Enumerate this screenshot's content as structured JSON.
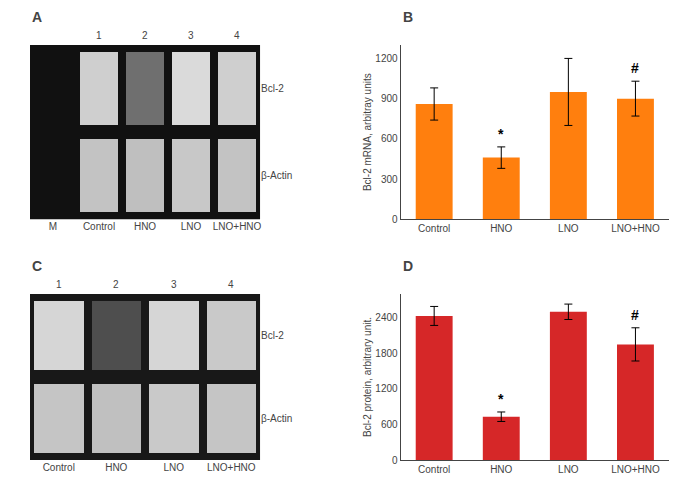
{
  "chart_data": [
    {
      "type": "heatmap",
      "title": "A",
      "categories": [
        "M",
        "Control",
        "HNO",
        "LNO",
        "LNO+HNO"
      ],
      "annotations": [
        null,
        "1",
        "2",
        "3",
        "4"
      ],
      "rows": [
        "Bcl-2",
        "β-Actin"
      ],
      "values": [
        [
          null,
          0.85,
          0.42,
          0.9,
          0.85
        ],
        [
          null,
          0.8,
          0.78,
          0.82,
          0.8
        ]
      ],
      "zlim": [
        0,
        1
      ],
      "color": "#111111"
    },
    {
      "type": "bar",
      "title": "B",
      "categories": [
        "Control",
        "HNO",
        "LNO",
        "LNO+HNO"
      ],
      "values": [
        860,
        460,
        950,
        900
      ],
      "errors": [
        120,
        80,
        250,
        130
      ],
      "annotations": [
        null,
        "*",
        null,
        "#"
      ],
      "ylabel": "Bcl-2 mRNA, arbitray units",
      "ylim": [
        0,
        1300
      ],
      "yticks": [
        0,
        300,
        600,
        900,
        1200
      ],
      "grid": false
    },
    {
      "type": "heatmap",
      "title": "C",
      "categories": [
        "Control",
        "HNO",
        "LNO",
        "LNO+HNO"
      ],
      "annotations": [
        "1",
        "2",
        "3",
        "4"
      ],
      "rows": [
        "Bcl-2",
        "β-Actin"
      ],
      "values": [
        [
          0.88,
          0.25,
          0.88,
          0.82
        ],
        [
          0.8,
          0.78,
          0.82,
          0.8
        ]
      ],
      "zlim": [
        0,
        1
      ],
      "color": "#181818"
    },
    {
      "type": "bar",
      "title": "D",
      "categories": [
        "Control",
        "HNO",
        "LNO",
        "LNO+HNO"
      ],
      "values": [
        2430,
        730,
        2500,
        1950
      ],
      "errors": [
        160,
        80,
        130,
        280
      ],
      "annotations": [
        null,
        "*",
        null,
        "#"
      ],
      "ylabel": "Bcl-2 protein, arbitrary unit.",
      "ylim": [
        0,
        2800
      ],
      "yticks": [
        0,
        600,
        1200,
        1800,
        2400
      ],
      "grid": false
    }
  ]
}
